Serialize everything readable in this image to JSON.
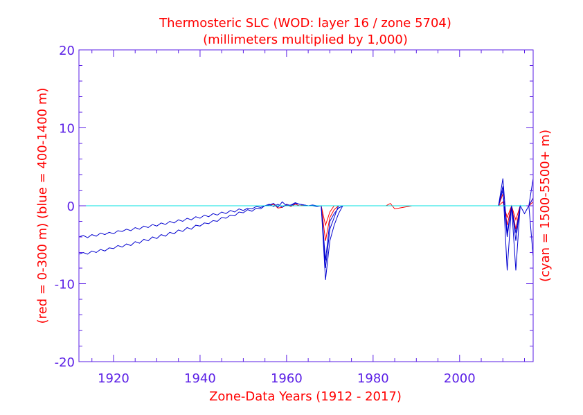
{
  "chart_data": {
    "type": "line",
    "title": "Thermosteric SLC (WOD: layer 16 / zone 5704)",
    "subtitle": "(millimeters multiplied by 1,000)",
    "xlabel": "Zone-Data Years (1912 - 2017)",
    "ylabel_left": "(red = 0-300 m)  (blue = 400-1400 m)",
    "ylabel_right": "(cyan = 1500-5500+ m)",
    "xlim": [
      1912,
      2017
    ],
    "ylim": [
      -20,
      20
    ],
    "x_ticks": [
      1920,
      1940,
      1960,
      1980,
      2000
    ],
    "y_ticks": [
      -20,
      -10,
      0,
      10,
      20
    ],
    "colors": {
      "title": "#ff0000",
      "axis": "#5a1ee6",
      "red": "#ff0000",
      "blue": "#0000d0",
      "cyan": "#00e0e0"
    },
    "series": [
      {
        "color": "red",
        "points": [
          [
            1956,
            0
          ],
          [
            1957,
            0.2
          ],
          [
            1958,
            -0.3
          ],
          [
            1959,
            -0.2
          ],
          [
            1960,
            0.1
          ],
          [
            1961,
            -0.1
          ],
          [
            1962,
            0.2
          ],
          [
            1963,
            0
          ],
          [
            1964,
            0.1
          ],
          [
            1965,
            0
          ],
          [
            1966,
            0
          ],
          [
            1967,
            0
          ],
          [
            1968,
            0
          ],
          [
            1969,
            -4.5
          ],
          [
            1970,
            -1.5
          ],
          [
            1971,
            -0.5
          ],
          [
            1972,
            0
          ],
          [
            1983,
            0
          ],
          [
            1984,
            0.3
          ],
          [
            1985,
            -0.4
          ],
          [
            1986,
            -0.3
          ],
          [
            1987,
            -0.2
          ],
          [
            1988,
            -0.1
          ],
          [
            1989,
            0
          ],
          [
            2009,
            0
          ],
          [
            2010,
            1.5
          ],
          [
            2011,
            -2.5
          ],
          [
            2012,
            0
          ],
          [
            2013,
            -3.0
          ],
          [
            2014,
            0
          ],
          [
            2015,
            0
          ],
          [
            2016,
            0
          ],
          [
            2017,
            1.0
          ]
        ]
      },
      {
        "color": "red",
        "points": [
          [
            1968,
            0
          ],
          [
            1969,
            -2.5
          ],
          [
            1970,
            -0.8
          ],
          [
            1971,
            0
          ],
          [
            2009,
            0
          ],
          [
            2010,
            0.5
          ],
          [
            2011,
            -1.5
          ],
          [
            2012,
            0
          ],
          [
            2013,
            -1.8
          ],
          [
            2014,
            0
          ],
          [
            2016,
            0
          ],
          [
            2017,
            0.5
          ]
        ]
      },
      {
        "color": "blue",
        "points": [
          [
            1912,
            -4.0
          ],
          [
            1913,
            -3.8
          ],
          [
            1914,
            -4.1
          ],
          [
            1915,
            -3.7
          ],
          [
            1916,
            -3.9
          ],
          [
            1917,
            -3.5
          ],
          [
            1918,
            -3.7
          ],
          [
            1919,
            -3.4
          ],
          [
            1920,
            -3.6
          ],
          [
            1921,
            -3.2
          ],
          [
            1922,
            -3.3
          ],
          [
            1923,
            -3.0
          ],
          [
            1924,
            -3.2
          ],
          [
            1925,
            -2.8
          ],
          [
            1926,
            -3.0
          ],
          [
            1927,
            -2.6
          ],
          [
            1928,
            -2.8
          ],
          [
            1929,
            -2.4
          ],
          [
            1930,
            -2.6
          ],
          [
            1931,
            -2.2
          ],
          [
            1932,
            -2.4
          ],
          [
            1933,
            -2.0
          ],
          [
            1934,
            -2.2
          ],
          [
            1935,
            -1.8
          ],
          [
            1936,
            -2.0
          ],
          [
            1937,
            -1.6
          ],
          [
            1938,
            -1.8
          ],
          [
            1939,
            -1.4
          ],
          [
            1940,
            -1.6
          ],
          [
            1941,
            -1.2
          ],
          [
            1942,
            -1.4
          ],
          [
            1943,
            -1.0
          ],
          [
            1944,
            -1.2
          ],
          [
            1945,
            -0.8
          ],
          [
            1946,
            -1.0
          ],
          [
            1947,
            -0.6
          ],
          [
            1948,
            -0.8
          ],
          [
            1949,
            -0.4
          ],
          [
            1950,
            -0.6
          ],
          [
            1951,
            -0.3
          ],
          [
            1952,
            -0.4
          ],
          [
            1953,
            -0.1
          ],
          [
            1954,
            -0.2
          ],
          [
            1955,
            0
          ],
          [
            1956,
            0.1
          ],
          [
            1957,
            0.3
          ],
          [
            1958,
            -0.2
          ],
          [
            1959,
            0.5
          ],
          [
            1960,
            0
          ],
          [
            1961,
            0.1
          ],
          [
            1962,
            0.4
          ],
          [
            1963,
            0.2
          ],
          [
            1964,
            0.1
          ],
          [
            1965,
            0
          ],
          [
            1966,
            0
          ],
          [
            1967,
            -0.1
          ],
          [
            1968,
            0
          ],
          [
            1969,
            -7.0
          ],
          [
            1970,
            -2.0
          ],
          [
            1971,
            -1.0
          ],
          [
            1972,
            -0.3
          ],
          [
            1973,
            0
          ],
          [
            2009,
            0
          ],
          [
            2010,
            3.5
          ],
          [
            2011,
            -3.5
          ],
          [
            2012,
            0
          ],
          [
            2013,
            -3.5
          ],
          [
            2014,
            0
          ],
          [
            2015,
            -1
          ],
          [
            2016,
            0
          ],
          [
            2017,
            3.5
          ]
        ]
      },
      {
        "color": "blue",
        "points": [
          [
            1912,
            -6.2
          ],
          [
            1913,
            -6.0
          ],
          [
            1914,
            -6.2
          ],
          [
            1915,
            -5.8
          ],
          [
            1916,
            -6.0
          ],
          [
            1917,
            -5.6
          ],
          [
            1918,
            -5.8
          ],
          [
            1919,
            -5.4
          ],
          [
            1920,
            -5.5
          ],
          [
            1921,
            -5.1
          ],
          [
            1922,
            -5.3
          ],
          [
            1923,
            -4.9
          ],
          [
            1924,
            -5.1
          ],
          [
            1925,
            -4.6
          ],
          [
            1926,
            -4.8
          ],
          [
            1927,
            -4.3
          ],
          [
            1928,
            -4.5
          ],
          [
            1929,
            -4.0
          ],
          [
            1930,
            -4.2
          ],
          [
            1931,
            -3.7
          ],
          [
            1932,
            -3.9
          ],
          [
            1933,
            -3.4
          ],
          [
            1934,
            -3.6
          ],
          [
            1935,
            -3.1
          ],
          [
            1936,
            -3.3
          ],
          [
            1937,
            -2.8
          ],
          [
            1938,
            -3.0
          ],
          [
            1939,
            -2.5
          ],
          [
            1940,
            -2.6
          ],
          [
            1941,
            -2.2
          ],
          [
            1942,
            -2.3
          ],
          [
            1943,
            -1.9
          ],
          [
            1944,
            -2.0
          ],
          [
            1945,
            -1.5
          ],
          [
            1946,
            -1.6
          ],
          [
            1947,
            -1.2
          ],
          [
            1948,
            -1.3
          ],
          [
            1949,
            -0.8
          ],
          [
            1950,
            -0.9
          ],
          [
            1951,
            -0.5
          ],
          [
            1952,
            -0.7
          ],
          [
            1953,
            -0.3
          ],
          [
            1954,
            -0.4
          ],
          [
            1955,
            0
          ],
          [
            1956,
            0.2
          ],
          [
            1957,
            -0.1
          ],
          [
            1958,
            0.2
          ],
          [
            1959,
            -0.2
          ],
          [
            1960,
            0.2
          ],
          [
            1961,
            0
          ],
          [
            1962,
            0.3
          ],
          [
            1963,
            0.2
          ],
          [
            1964,
            0.1
          ],
          [
            1965,
            0
          ],
          [
            1966,
            0.1
          ],
          [
            1967,
            0
          ],
          [
            1968,
            0
          ],
          [
            1969,
            -9.5
          ],
          [
            1970,
            -4.5
          ],
          [
            1971,
            -2.5
          ],
          [
            1972,
            -1.0
          ],
          [
            1973,
            0
          ],
          [
            2009,
            0
          ],
          [
            2010,
            2.5
          ],
          [
            2011,
            -8.3
          ],
          [
            2012,
            0
          ],
          [
            2013,
            -8.3
          ],
          [
            2014,
            0
          ],
          [
            2016,
            0
          ],
          [
            2017,
            -6.5
          ]
        ]
      },
      {
        "color": "blue",
        "points": [
          [
            1968,
            0
          ],
          [
            1969,
            -8.0
          ],
          [
            1970,
            -3.0
          ],
          [
            1971,
            -1.5
          ],
          [
            1972,
            0
          ],
          [
            2009,
            0
          ],
          [
            2010,
            2.0
          ],
          [
            2011,
            -4.0
          ],
          [
            2012,
            0
          ],
          [
            2013,
            -4.5
          ],
          [
            2014,
            0
          ],
          [
            2016,
            0
          ],
          [
            2017,
            1.0
          ]
        ]
      },
      {
        "color": "cyan",
        "points": [
          [
            1912,
            0
          ],
          [
            2017,
            0
          ]
        ]
      }
    ]
  }
}
